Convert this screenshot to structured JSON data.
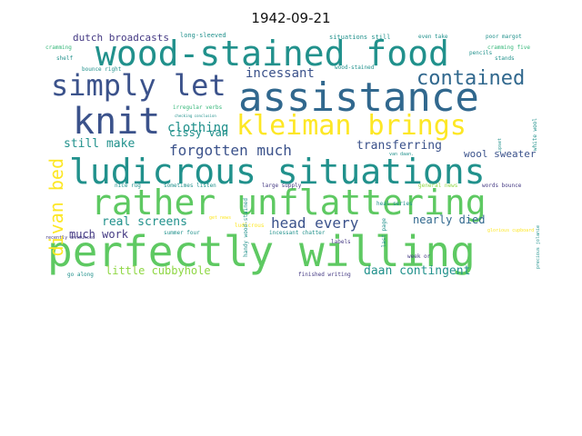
{
  "title": "1942-09-21",
  "colors": {
    "yellow": "#fde725",
    "lime": "#8fd744",
    "green": "#5ec962",
    "teal": "#21918c",
    "sea": "#35b779",
    "blue": "#3b528b",
    "navy": "#31688e",
    "indigo": "#443983"
  },
  "words": [
    {
      "text": "wood-stained food",
      "color": "teal"
    },
    {
      "text": "assistance",
      "color": "navy"
    },
    {
      "text": "simply let",
      "color": "blue"
    },
    {
      "text": "contained",
      "color": "navy"
    },
    {
      "text": "knit",
      "color": "blue"
    },
    {
      "text": "kleiman brings",
      "color": "yellow"
    },
    {
      "text": "ludicrous situations",
      "color": "teal"
    },
    {
      "text": "rather unflattering",
      "color": "green"
    },
    {
      "text": "perfectly willing",
      "color": "green"
    },
    {
      "text": "divan bed",
      "color": "yellow"
    },
    {
      "text": "incessant",
      "color": "blue"
    },
    {
      "text": "clothing",
      "color": "teal"
    },
    {
      "text": "forgotten much",
      "color": "blue"
    },
    {
      "text": "cissy van",
      "color": "teal"
    },
    {
      "text": "still make",
      "color": "teal"
    },
    {
      "text": "transferring",
      "color": "blue"
    },
    {
      "text": "wool sweater",
      "color": "blue"
    },
    {
      "text": "real screens",
      "color": "teal"
    },
    {
      "text": "head every",
      "color": "blue"
    },
    {
      "text": "nearly died",
      "color": "navy"
    },
    {
      "text": "much work",
      "color": "indigo"
    },
    {
      "text": "little cubbyhole",
      "color": "lime"
    },
    {
      "text": "daan contingent",
      "color": "teal"
    },
    {
      "text": "dutch broadcasts",
      "color": "indigo"
    },
    {
      "text": "long-sleeved",
      "color": "teal"
    },
    {
      "text": "situations still",
      "color": "teal"
    },
    {
      "text": "even take",
      "color": "teal"
    },
    {
      "text": "poor margot",
      "color": "teal"
    },
    {
      "text": "cramming",
      "color": "sea"
    },
    {
      "text": "cramming five",
      "color": "sea"
    },
    {
      "text": "shelf",
      "color": "teal"
    },
    {
      "text": "bounce right",
      "color": "teal"
    },
    {
      "text": "pencils",
      "color": "teal"
    },
    {
      "text": "stands",
      "color": "teal"
    },
    {
      "text": "wood-stained",
      "color": "teal"
    },
    {
      "text": "irregular verbs",
      "color": "sea"
    },
    {
      "text": "white wool",
      "color": "teal"
    },
    {
      "text": "sometimes listen",
      "color": "teal"
    },
    {
      "text": "large supply",
      "color": "indigo"
    },
    {
      "text": "general news",
      "color": "lime"
    },
    {
      "text": "words bounce",
      "color": "indigo"
    },
    {
      "text": "nice rug",
      "color": "teal"
    },
    {
      "text": "summer four",
      "color": "teal"
    },
    {
      "text": "ludicrous",
      "color": "yellow"
    },
    {
      "text": "incessant chatter",
      "color": "teal"
    },
    {
      "text": "labels",
      "color": "indigo"
    },
    {
      "text": "glorious cupboard",
      "color": "yellow"
    },
    {
      "text": "handy wood-stained",
      "color": "teal"
    },
    {
      "text": "last page",
      "color": "teal"
    },
    {
      "text": "precious jolanie",
      "color": "teal"
    },
    {
      "text": "go along",
      "color": "teal"
    },
    {
      "text": "finished writing",
      "color": "indigo"
    },
    {
      "text": "week or",
      "color": "indigo"
    },
    {
      "text": "van daan.",
      "color": "teal"
    },
    {
      "text": "upset",
      "color": "teal"
    },
    {
      "text": "heal series",
      "color": "teal"
    },
    {
      "text": "get news",
      "color": "yellow"
    },
    {
      "text": "checking conclusion",
      "color": "teal"
    },
    {
      "text": "recently announced",
      "color": "indigo"
    }
  ]
}
